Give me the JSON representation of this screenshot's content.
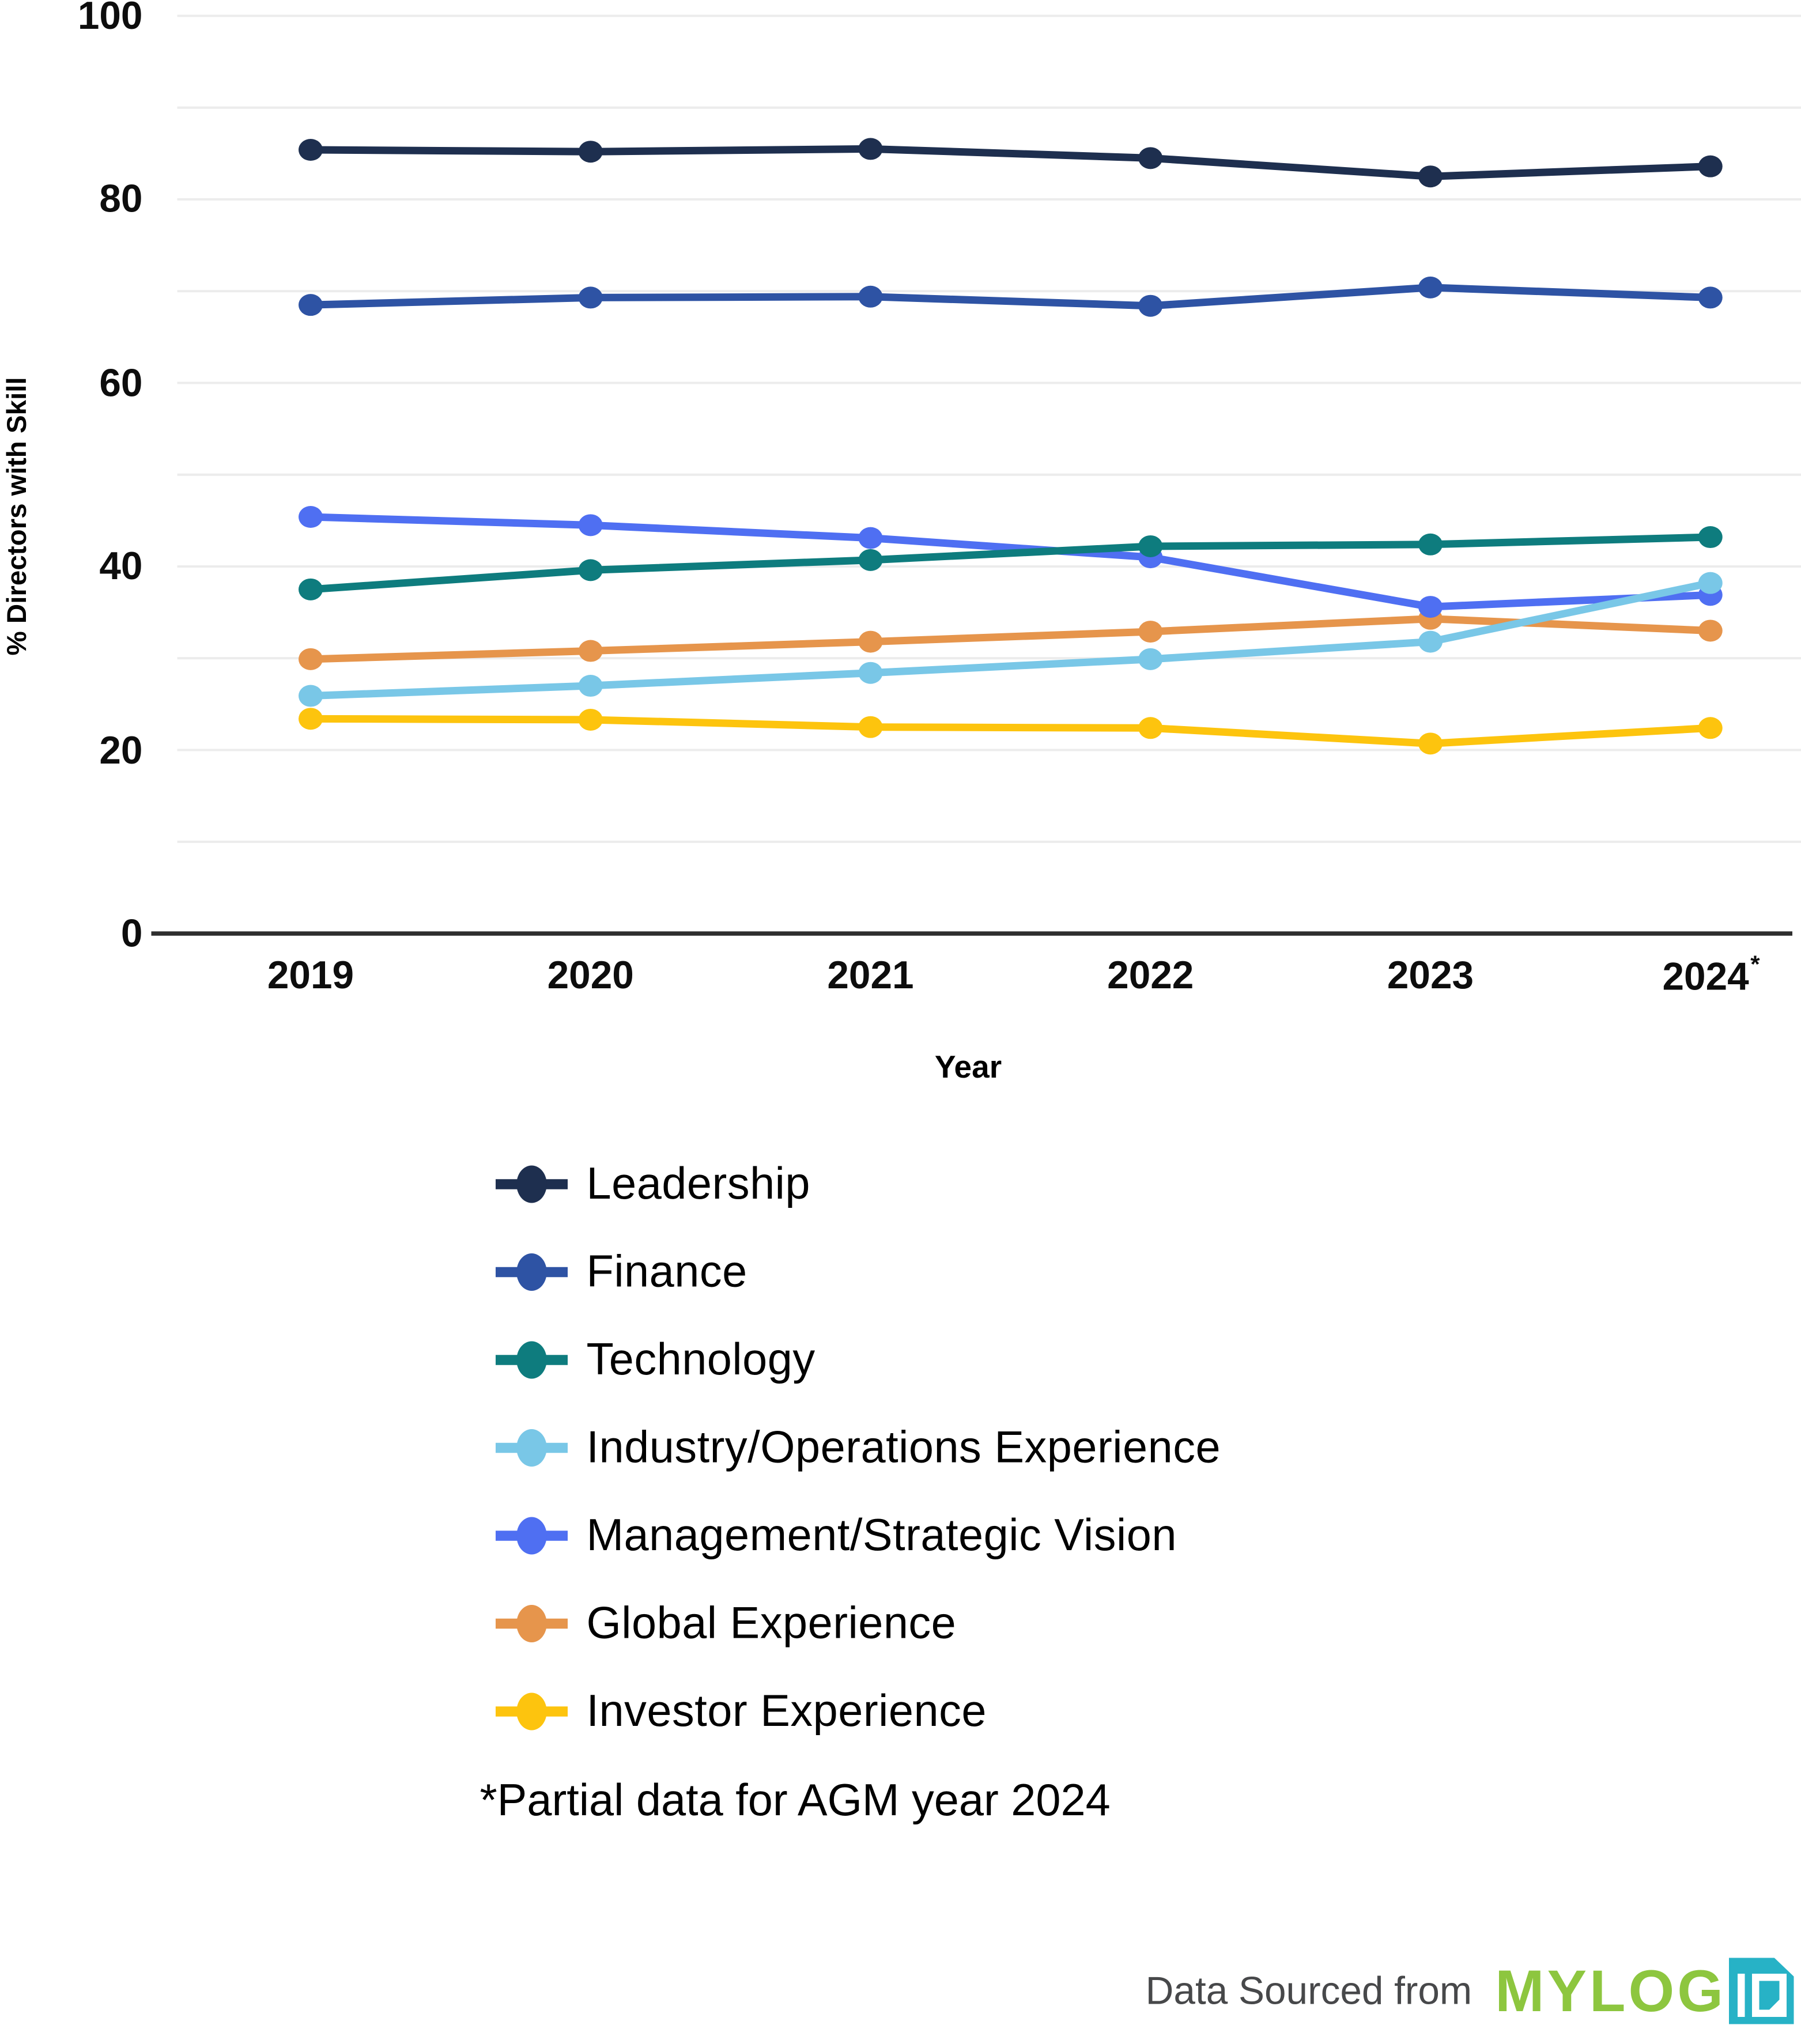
{
  "chart_data": {
    "type": "line",
    "title": "",
    "xlabel": "Year",
    "ylabel": "% Directors with Skill",
    "categories": [
      "2019",
      "2020",
      "2021",
      "2022",
      "2023",
      "2024*"
    ],
    "y_ticks": [
      0,
      20,
      40,
      60,
      80,
      100
    ],
    "y_grid_step": 10,
    "ylim": [
      0,
      100
    ],
    "grid": "horizontal",
    "legend_position": "bottom-left",
    "series": [
      {
        "name": "Leadership",
        "color": "#1e2f4f",
        "values": [
          85.4,
          85.2,
          85.5,
          84.5,
          82.5,
          83.6
        ]
      },
      {
        "name": "Finance",
        "color": "#2e53a4",
        "values": [
          68.5,
          69.3,
          69.4,
          68.4,
          70.4,
          69.3
        ]
      },
      {
        "name": "Technology",
        "color": "#0e7c7e",
        "values": [
          37.5,
          39.6,
          40.7,
          42.2,
          42.4,
          43.2
        ]
      },
      {
        "name": "Industry/Operations Experience",
        "color": "#79c7e7",
        "values": [
          25.9,
          27.0,
          28.4,
          29.9,
          31.8,
          38.2
        ]
      },
      {
        "name": "Management/Strategic Vision",
        "color": "#4f6ff2",
        "values": [
          45.4,
          44.5,
          43.1,
          41.0,
          35.6,
          36.9
        ]
      },
      {
        "name": "Global Experience",
        "color": "#e6954c",
        "values": [
          29.9,
          30.8,
          31.8,
          32.9,
          34.3,
          33.0
        ]
      },
      {
        "name": "Investor Experience",
        "color": "#fdc40e",
        "values": [
          23.4,
          23.3,
          22.5,
          22.4,
          20.7,
          22.4
        ]
      }
    ],
    "footnote": "*Partial data for AGM year 2024"
  },
  "colors": {
    "axis": "#2e2e2e",
    "grid": "#ececec",
    "logo_green": "#8dc63f",
    "logo_cyan": "#27b2c6"
  },
  "footer": {
    "text": "Data Sourced from",
    "logo_text": "MYLOG",
    "logo_badge_text": "IQ"
  }
}
